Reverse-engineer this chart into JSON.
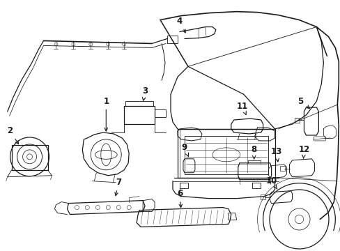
{
  "background_color": "#ffffff",
  "line_color": "#1a1a1a",
  "fig_width": 4.89,
  "fig_height": 3.6,
  "dpi": 100,
  "label_fontsize": 8.5,
  "line_width": 0.9
}
